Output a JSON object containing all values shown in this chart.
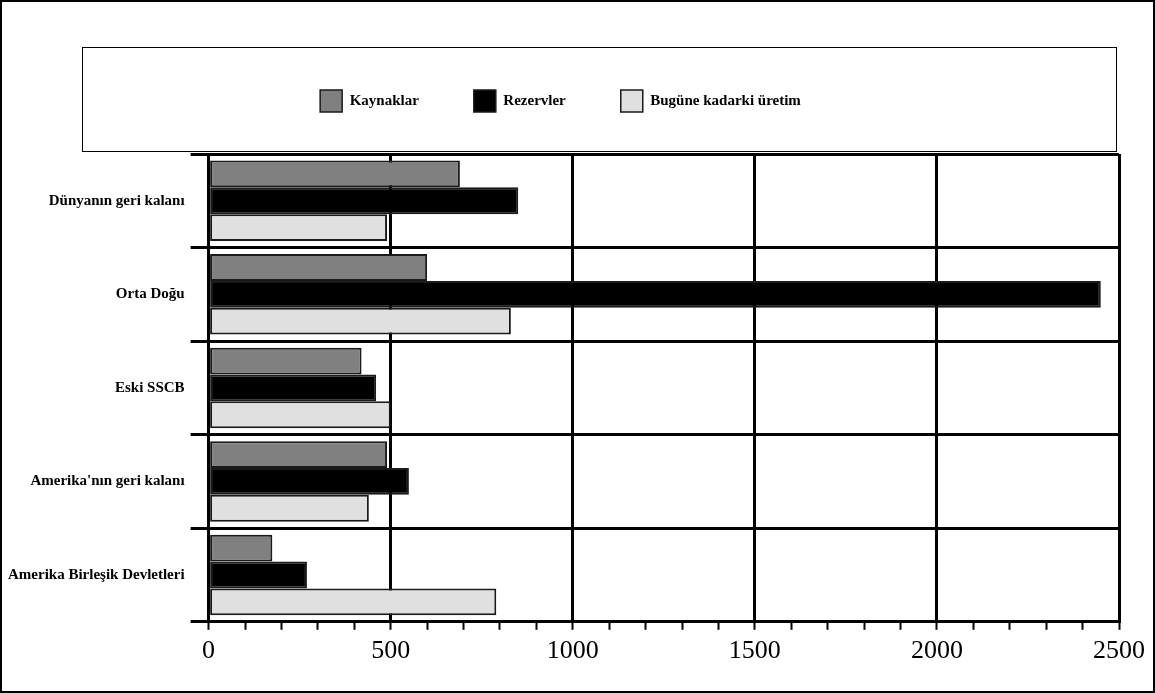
{
  "chart_data": {
    "type": "bar",
    "orientation": "horizontal",
    "categories": [
      "Dünyanın geri kalanı",
      "Orta Doğu",
      "Eski SSCB",
      "Amerika'nın geri kalanı",
      "Amerika Birleşik Devletleri"
    ],
    "series": [
      {
        "name": "Kaynaklar",
        "color": "#808080",
        "values": [
          690,
          600,
          420,
          490,
          175
        ]
      },
      {
        "name": "Rezervler",
        "color": "#000000",
        "values": [
          850,
          2450,
          460,
          550,
          270
        ]
      },
      {
        "name": "Bugüne kadarki üretim",
        "color": "#e0e0e0",
        "values": [
          490,
          830,
          500,
          440,
          790
        ]
      }
    ],
    "xlim": [
      0,
      2500
    ],
    "xticks": [
      0,
      {
        "value": 100,
        "label": null
      },
      {
        "value": 200,
        "label": null
      },
      {
        "value": 300,
        "label": null
      },
      {
        "value": 400,
        "label": null
      },
      500,
      {
        "value": 600,
        "label": null
      },
      {
        "value": 700,
        "label": null
      },
      {
        "value": 800,
        "label": null
      },
      {
        "value": 900,
        "label": null
      },
      1000,
      {
        "value": 1100,
        "label": null
      },
      {
        "value": 1200,
        "label": null
      },
      {
        "value": 1300,
        "label": null
      },
      {
        "value": 1400,
        "label": null
      },
      1500,
      {
        "value": 1600,
        "label": null
      },
      {
        "value": 1700,
        "label": null
      },
      {
        "value": 1800,
        "label": null
      },
      {
        "value": 1900,
        "label": null
      },
      2000,
      {
        "value": 2100,
        "label": null
      },
      {
        "value": 2200,
        "label": null
      },
      {
        "value": 2300,
        "label": null
      },
      {
        "value": 2400,
        "label": null
      },
      2500
    ],
    "grid": true,
    "legend": "top"
  }
}
